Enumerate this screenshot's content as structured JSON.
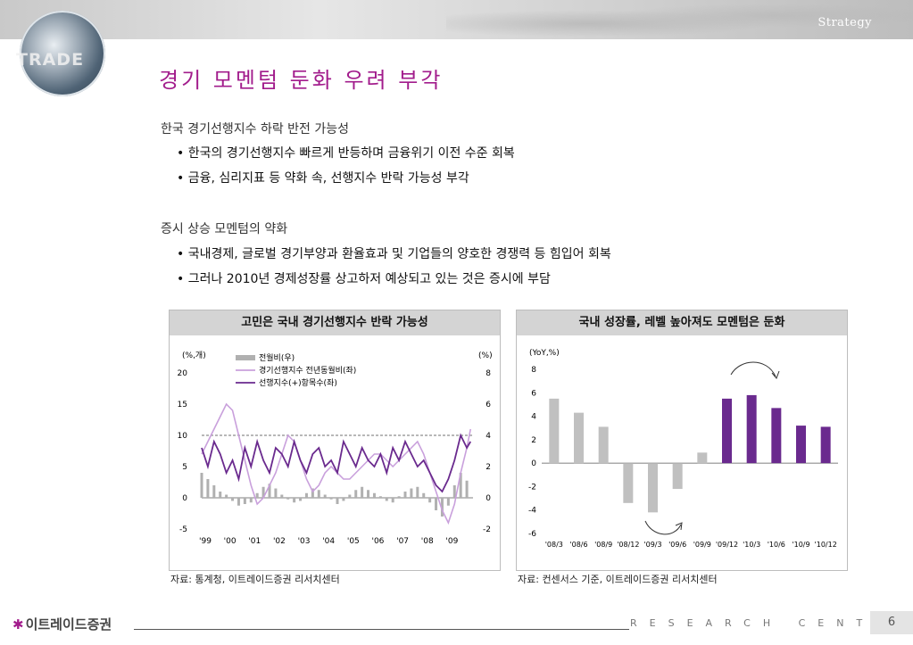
{
  "header": {
    "strategy_label": "Strategy",
    "logo_text": "TRADE"
  },
  "title": "경기 모멘텀 둔화 우려 부각",
  "section1": {
    "heading": "한국 경기선행지수 하락 반전 가능성",
    "bullets": [
      "한국의 경기선행지수 빠르게 반등하며 금융위기 이전 수준 회복",
      "금융, 심리지표 등 약화 속, 선행지수 반락 가능성 부각"
    ]
  },
  "section2": {
    "heading": "증시 상승 모멘텀의 약화",
    "bullets": [
      "국내경제, 글로벌 경기부양과 환율효과 및 기업들의 양호한 경쟁력 등 힘입어 회복",
      "그러나 2010년 경제성장률 상고하저 예상되고 있는 것은 증시에 부담"
    ]
  },
  "chart1": {
    "header": "고민은 국내 경기선행지수 반락 가능성",
    "source": "자료: 통계청, 이트레이드증권 리서치센터"
  },
  "chart2": {
    "header": "국내 성장률, 레벨 높아져도 모멘텀은 둔화",
    "source": "자료: 컨센서스 기준, 이트레이드증권 리서치센터"
  },
  "footer": {
    "logo": "이트레이드증권",
    "research": "RESEARCH CENTER",
    "page": "6"
  },
  "chart_data": [
    {
      "type": "line",
      "left_unit": "(%,개)",
      "right_unit": "(%)",
      "x_tick_labels": [
        "'99",
        "'00",
        "'01",
        "'02",
        "'03",
        "'04",
        "'05",
        "'06",
        "'07",
        "'08",
        "'09"
      ],
      "y_left_ticks": [
        -5,
        0,
        5,
        10,
        15,
        20
      ],
      "y_right_ticks": [
        -2,
        0,
        2,
        4,
        6,
        8
      ],
      "ylim_left": [
        -5,
        20
      ],
      "ylim_right": [
        -2,
        8
      ],
      "reference_line_left": 10,
      "series": [
        {
          "name": "전월비(우)",
          "kind": "bar",
          "axis": "right",
          "color": "#b0b0b0",
          "x": [
            1999.0,
            1999.25,
            1999.5,
            1999.75,
            2000.0,
            2000.25,
            2000.5,
            2000.75,
            2001.0,
            2001.25,
            2001.5,
            2001.75,
            2002.0,
            2002.25,
            2002.5,
            2002.75,
            2003.0,
            2003.25,
            2003.5,
            2003.75,
            2004.0,
            2004.25,
            2004.5,
            2004.75,
            2005.0,
            2005.25,
            2005.5,
            2005.75,
            2006.0,
            2006.25,
            2006.5,
            2006.75,
            2007.0,
            2007.25,
            2007.5,
            2007.75,
            2008.0,
            2008.25,
            2008.5,
            2008.75,
            2009.0,
            2009.25,
            2009.5,
            2009.75
          ],
          "values": [
            1.6,
            1.2,
            0.8,
            0.4,
            0.2,
            -0.2,
            -0.5,
            -0.4,
            -0.3,
            0.3,
            0.7,
            0.9,
            0.6,
            0.2,
            -0.1,
            -0.3,
            -0.2,
            0.3,
            0.6,
            0.5,
            0.2,
            -0.1,
            -0.4,
            -0.2,
            0.2,
            0.5,
            0.7,
            0.5,
            0.3,
            0.1,
            -0.2,
            -0.3,
            0.1,
            0.4,
            0.6,
            0.7,
            0.3,
            -0.3,
            -0.8,
            -1.2,
            -0.5,
            0.8,
            1.6,
            1.1
          ]
        },
        {
          "name": "경기선행지수 전년동월비(좌)",
          "kind": "line",
          "axis": "left",
          "color": "#c9a0dc",
          "x": [
            1999.0,
            1999.25,
            1999.5,
            1999.75,
            2000.0,
            2000.25,
            2000.5,
            2000.75,
            2001.0,
            2001.25,
            2001.5,
            2001.75,
            2002.0,
            2002.25,
            2002.5,
            2002.75,
            2003.0,
            2003.25,
            2003.5,
            2003.75,
            2004.0,
            2004.25,
            2004.5,
            2004.75,
            2005.0,
            2005.25,
            2005.5,
            2005.75,
            2006.0,
            2006.25,
            2006.5,
            2006.75,
            2007.0,
            2007.25,
            2007.5,
            2007.75,
            2008.0,
            2008.25,
            2008.5,
            2008.75,
            2009.0,
            2009.25,
            2009.5,
            2009.75,
            2009.9
          ],
          "values": [
            7,
            9,
            11,
            13,
            15,
            14,
            10,
            6,
            2,
            -1,
            0,
            2,
            4,
            7,
            10,
            9,
            6,
            3,
            1,
            2,
            4,
            5,
            4,
            3,
            3,
            4,
            5,
            6,
            7,
            7,
            6,
            5,
            6,
            7,
            8,
            9,
            7,
            4,
            1,
            -2,
            -4,
            -1,
            4,
            8,
            11
          ]
        },
        {
          "name": "선행지수(+)항목수(좌)",
          "kind": "line",
          "axis": "left",
          "color": "#6a2a8e",
          "x": [
            1999.0,
            1999.25,
            1999.5,
            1999.75,
            2000.0,
            2000.25,
            2000.5,
            2000.75,
            2001.0,
            2001.25,
            2001.5,
            2001.75,
            2002.0,
            2002.25,
            2002.5,
            2002.75,
            2003.0,
            2003.25,
            2003.5,
            2003.75,
            2004.0,
            2004.25,
            2004.5,
            2004.75,
            2005.0,
            2005.25,
            2005.5,
            2005.75,
            2006.0,
            2006.25,
            2006.5,
            2006.75,
            2007.0,
            2007.25,
            2007.5,
            2007.75,
            2008.0,
            2008.25,
            2008.5,
            2008.75,
            2009.0,
            2009.25,
            2009.5,
            2009.75,
            2009.9
          ],
          "values": [
            8,
            5,
            9,
            7,
            4,
            6,
            3,
            8,
            5,
            9,
            6,
            4,
            8,
            7,
            5,
            9,
            6,
            4,
            7,
            8,
            5,
            6,
            4,
            9,
            7,
            5,
            8,
            6,
            5,
            7,
            4,
            8,
            6,
            9,
            7,
            5,
            6,
            4,
            2,
            1,
            3,
            6,
            10,
            8,
            9
          ]
        }
      ]
    },
    {
      "type": "bar",
      "unit": "(YoY,%)",
      "categories": [
        "'08/3",
        "'08/6",
        "'08/9",
        "'08/12",
        "'09/3",
        "'09/6",
        "'09/9",
        "'09/12",
        "'10/3",
        "'10/6",
        "'10/9",
        "'10/12"
      ],
      "values": [
        5.5,
        4.3,
        3.1,
        -3.4,
        -4.2,
        -2.2,
        0.9,
        5.5,
        5.8,
        4.7,
        3.2,
        3.1
      ],
      "colors": [
        "#c0c0c0",
        "#c0c0c0",
        "#c0c0c0",
        "#c0c0c0",
        "#c0c0c0",
        "#c0c0c0",
        "#c0c0c0",
        "#6a2a8e",
        "#6a2a8e",
        "#6a2a8e",
        "#6a2a8e",
        "#6a2a8e"
      ],
      "y_ticks": [
        -6,
        -4,
        -2,
        0,
        2,
        4,
        6,
        8
      ],
      "ylim": [
        -6,
        8
      ]
    }
  ]
}
